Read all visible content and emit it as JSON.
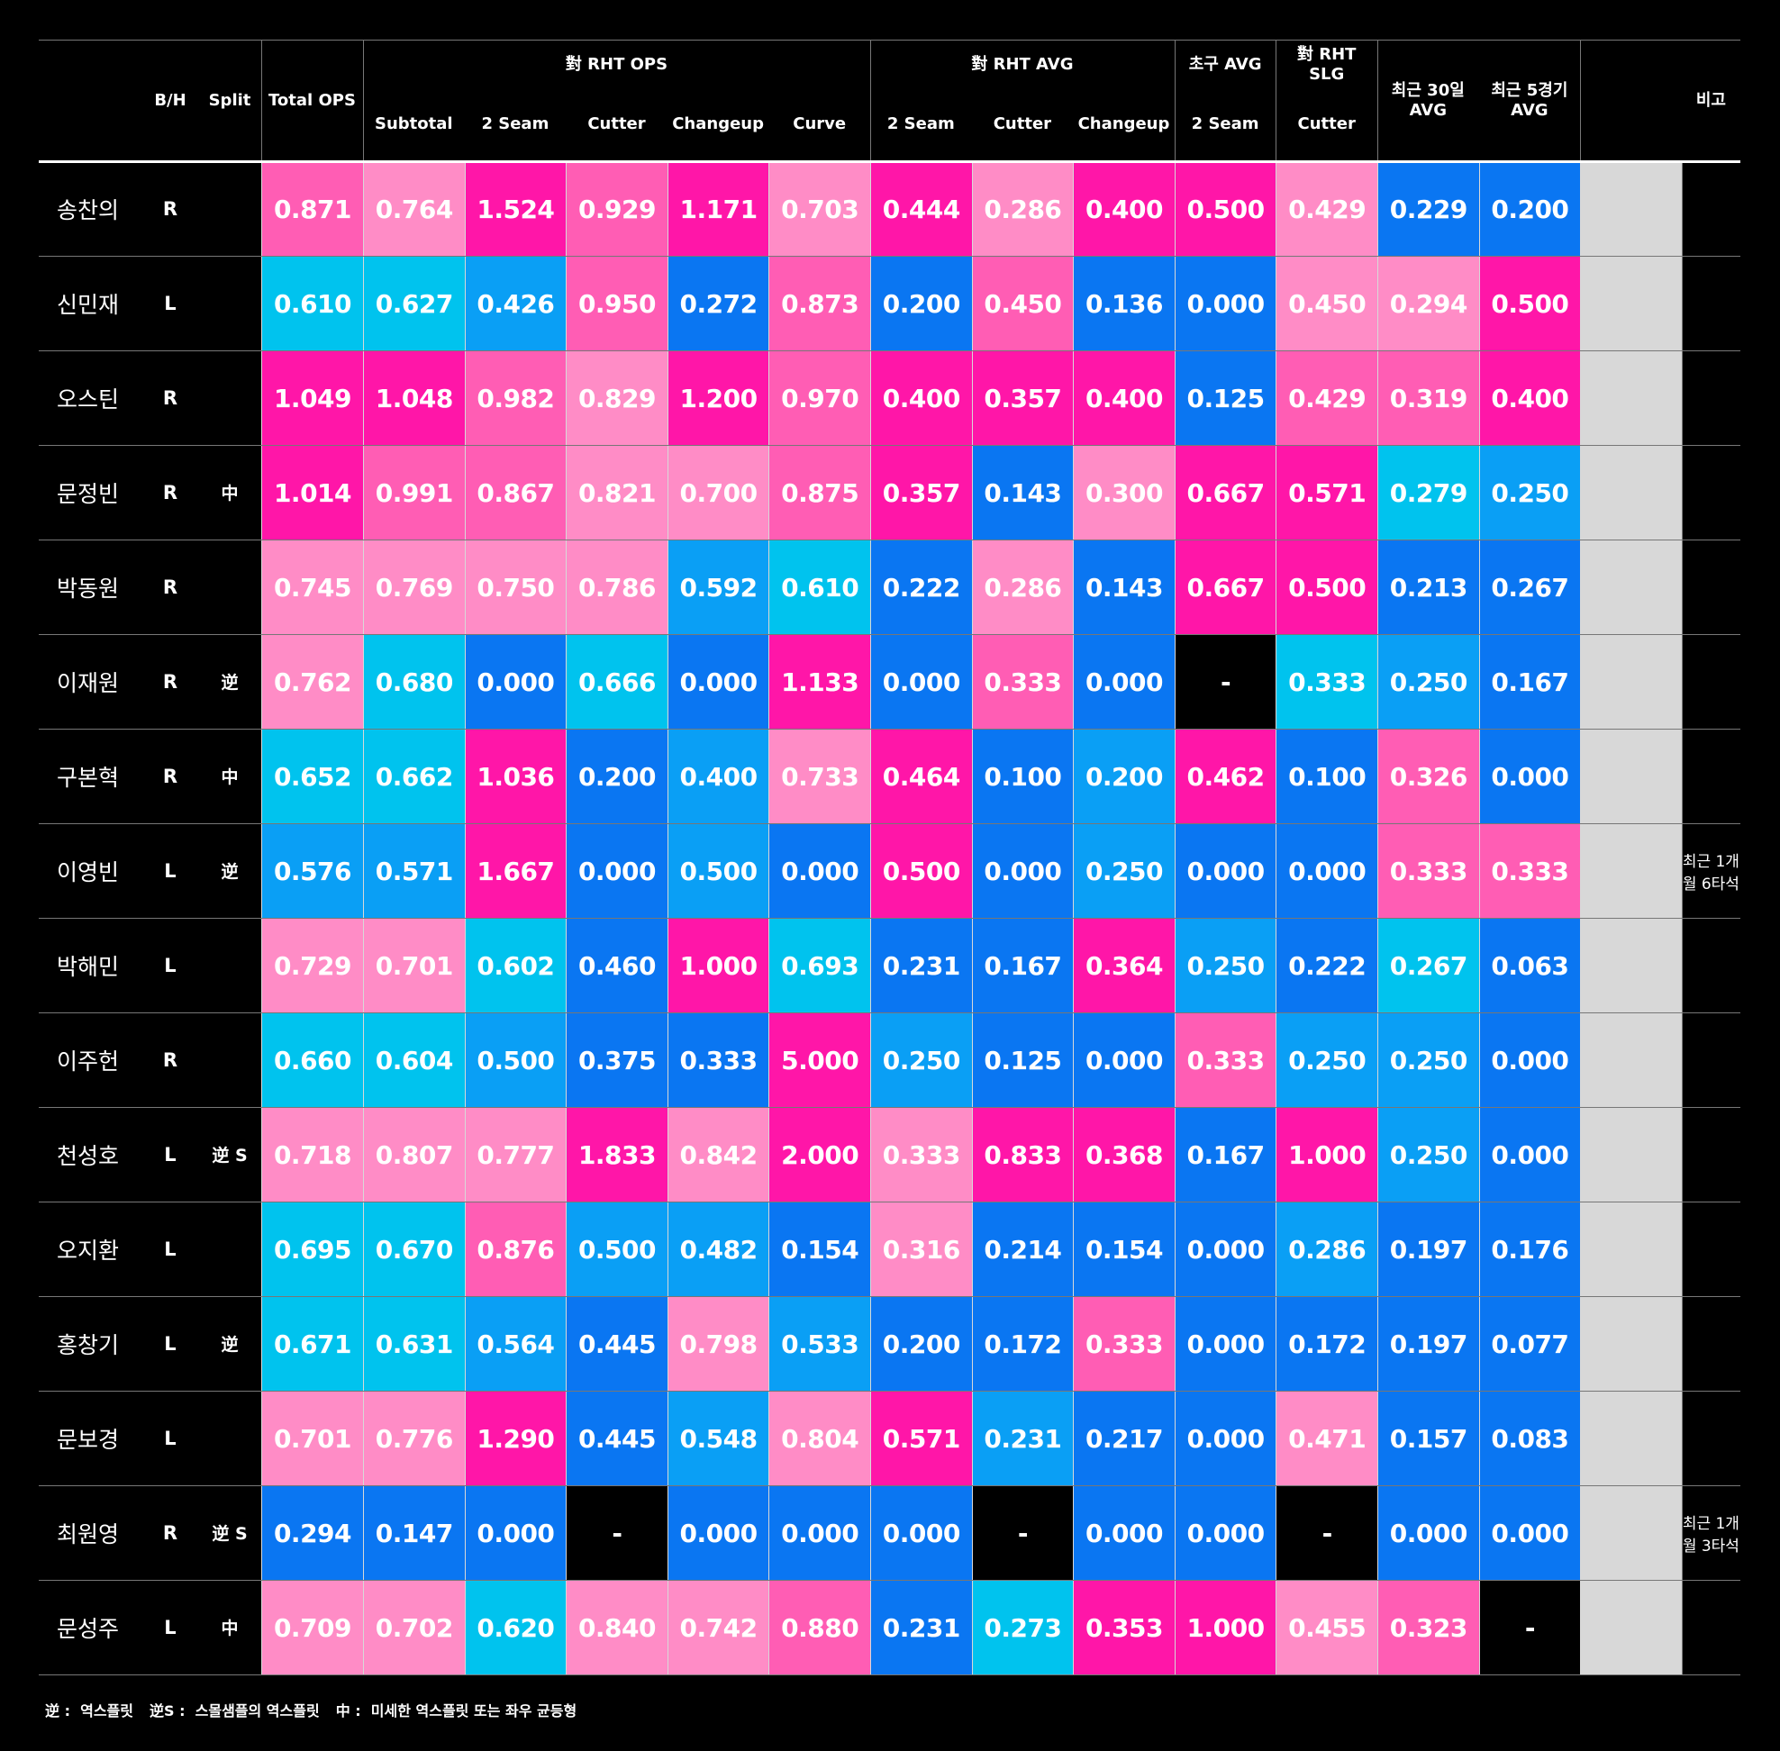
{
  "header": {
    "bh": "B/H",
    "split": "Split",
    "total": "Total OPS",
    "groups": [
      {
        "title": [
          "對 RHT OPS"
        ],
        "columns": [
          "Subtotal",
          "2 Seam",
          "Cutter",
          "Changeup",
          "Curve"
        ]
      },
      {
        "title": [
          "對 RHT AVG"
        ],
        "columns": [
          "2 Seam",
          "Cutter",
          "Changeup"
        ]
      },
      {
        "title": [
          "초구 AVG"
        ],
        "columns": [
          "2 Seam"
        ]
      },
      {
        "title": [
          "對 RHT",
          "SLG"
        ],
        "columns": [
          "Cutter"
        ]
      }
    ],
    "recent": [
      [
        "최근 30일",
        "AVG"
      ],
      [
        "최근 5경기",
        "AVG"
      ]
    ],
    "note": "비고"
  },
  "rows": [
    {
      "name": "송찬의",
      "bh": "R",
      "values": [
        "0.871",
        "0.764",
        "1.524",
        "0.929",
        "1.171",
        "0.703",
        "0.444",
        "0.286",
        "0.400",
        "0.500",
        "0.429",
        "0.229",
        "0.200"
      ],
      "colors": [
        "#ff5db4",
        "#ff8cc6",
        "#ff16a8",
        "#ff5db4",
        "#ff16a8",
        "#ff8cc6",
        "#ff16a8",
        "#ff8cc6",
        "#ff16a8",
        "#ff16a8",
        "#ff8cc6",
        "#0a76f2",
        "#0a76f2"
      ]
    },
    {
      "name": "신민재",
      "bh": "L",
      "values": [
        "0.610",
        "0.627",
        "0.426",
        "0.950",
        "0.272",
        "0.873",
        "0.200",
        "0.450",
        "0.136",
        "0.000",
        "0.450",
        "0.294",
        "0.500"
      ],
      "colors": [
        "#00c3ee",
        "#00c3ee",
        "#0a9ff5",
        "#ff5db4",
        "#0a76f2",
        "#ff5db4",
        "#0a76f2",
        "#ff5db4",
        "#0a76f2",
        "#0a76f2",
        "#ff8cc6",
        "#ff8cc6",
        "#ff16a8"
      ]
    },
    {
      "name": "오스틴",
      "bh": "R",
      "values": [
        "1.049",
        "1.048",
        "0.982",
        "0.829",
        "1.200",
        "0.970",
        "0.400",
        "0.357",
        "0.400",
        "0.125",
        "0.429",
        "0.319",
        "0.400"
      ],
      "colors": [
        "#ff16a8",
        "#ff16a8",
        "#ff5db4",
        "#ff8cc6",
        "#ff16a8",
        "#ff5db4",
        "#ff16a8",
        "#ff16a8",
        "#ff16a8",
        "#0a76f2",
        "#ff5db4",
        "#ff5db4",
        "#ff16a8"
      ]
    },
    {
      "name": "문정빈",
      "bh": "R",
      "split": "中",
      "values": [
        "1.014",
        "0.991",
        "0.867",
        "0.821",
        "0.700",
        "0.875",
        "0.357",
        "0.143",
        "0.300",
        "0.667",
        "0.571",
        "0.279",
        "0.250"
      ],
      "colors": [
        "#ff16a8",
        "#ff5db4",
        "#ff5db4",
        "#ff8cc6",
        "#ff8cc6",
        "#ff5db4",
        "#ff16a8",
        "#0a76f2",
        "#ff8cc6",
        "#ff16a8",
        "#ff16a8",
        "#00c3ee",
        "#0a9ff5"
      ]
    },
    {
      "name": "박동원",
      "bh": "R",
      "values": [
        "0.745",
        "0.769",
        "0.750",
        "0.786",
        "0.592",
        "0.610",
        "0.222",
        "0.286",
        "0.143",
        "0.667",
        "0.500",
        "0.213",
        "0.267"
      ],
      "colors": [
        "#ff8cc6",
        "#ff8cc6",
        "#ff8cc6",
        "#ff8cc6",
        "#0a9ff5",
        "#00c3ee",
        "#0a76f2",
        "#ff8cc6",
        "#0a76f2",
        "#ff16a8",
        "#ff16a8",
        "#0a76f2",
        "#0a76f2"
      ]
    },
    {
      "name": "이재원",
      "bh": "R",
      "split": "逆",
      "values": [
        "0.762",
        "0.680",
        "0.000",
        "0.666",
        "0.000",
        "1.133",
        "0.000",
        "0.333",
        "0.000",
        "-",
        "0.333",
        "0.250",
        "0.167"
      ],
      "colors": [
        "#ff8cc6",
        "#00c3ee",
        "#0a76f2",
        "#00c3ee",
        "#0a76f2",
        "#ff16a8",
        "#0a76f2",
        "#ff5db4",
        "#0a76f2",
        "#000000",
        "#00c3ee",
        "#0a9ff5",
        "#0a76f2"
      ]
    },
    {
      "name": "구본혁",
      "bh": "R",
      "split": "中",
      "values": [
        "0.652",
        "0.662",
        "1.036",
        "0.200",
        "0.400",
        "0.733",
        "0.464",
        "0.100",
        "0.200",
        "0.462",
        "0.100",
        "0.326",
        "0.000"
      ],
      "colors": [
        "#00c3ee",
        "#00c3ee",
        "#ff16a8",
        "#0a76f2",
        "#0a9ff5",
        "#ff8cc6",
        "#ff16a8",
        "#0a76f2",
        "#0a9ff5",
        "#ff16a8",
        "#0a76f2",
        "#ff5db4",
        "#0a76f2"
      ]
    },
    {
      "name": "이영빈",
      "bh": "L",
      "split": "逆",
      "note": "최근 1개월 6타석",
      "values": [
        "0.576",
        "0.571",
        "1.667",
        "0.000",
        "0.500",
        "0.000",
        "0.500",
        "0.000",
        "0.250",
        "0.000",
        "0.000",
        "0.333",
        "0.333"
      ],
      "colors": [
        "#0a9ff5",
        "#0a9ff5",
        "#ff16a8",
        "#0a76f2",
        "#0a9ff5",
        "#0a76f2",
        "#ff16a8",
        "#0a76f2",
        "#0a9ff5",
        "#0a76f2",
        "#0a76f2",
        "#ff5db4",
        "#ff5db4"
      ]
    },
    {
      "name": "박해민",
      "bh": "L",
      "values": [
        "0.729",
        "0.701",
        "0.602",
        "0.460",
        "1.000",
        "0.693",
        "0.231",
        "0.167",
        "0.364",
        "0.250",
        "0.222",
        "0.267",
        "0.063"
      ],
      "colors": [
        "#ff8cc6",
        "#ff8cc6",
        "#00c3ee",
        "#0a76f2",
        "#ff16a8",
        "#00c3ee",
        "#0a76f2",
        "#0a76f2",
        "#ff16a8",
        "#0a9ff5",
        "#0a76f2",
        "#00c3ee",
        "#0a76f2"
      ]
    },
    {
      "name": "이주헌",
      "bh": "R",
      "values": [
        "0.660",
        "0.604",
        "0.500",
        "0.375",
        "0.333",
        "5.000",
        "0.250",
        "0.125",
        "0.000",
        "0.333",
        "0.250",
        "0.250",
        "0.000"
      ],
      "colors": [
        "#00c3ee",
        "#00c3ee",
        "#0a9ff5",
        "#0a76f2",
        "#0a76f2",
        "#ff16a8",
        "#0a9ff5",
        "#0a76f2",
        "#0a76f2",
        "#ff5db4",
        "#0a9ff5",
        "#0a9ff5",
        "#0a76f2"
      ]
    },
    {
      "name": "천성호",
      "bh": "L",
      "split": "逆 S",
      "values": [
        "0.718",
        "0.807",
        "0.777",
        "1.833",
        "0.842",
        "2.000",
        "0.333",
        "0.833",
        "0.368",
        "0.167",
        "1.000",
        "0.250",
        "0.000"
      ],
      "colors": [
        "#ff8cc6",
        "#ff8cc6",
        "#ff8cc6",
        "#ff16a8",
        "#ff8cc6",
        "#ff16a8",
        "#ff8cc6",
        "#ff16a8",
        "#ff16a8",
        "#0a76f2",
        "#ff16a8",
        "#0a9ff5",
        "#0a76f2"
      ]
    },
    {
      "name": "오지환",
      "bh": "L",
      "values": [
        "0.695",
        "0.670",
        "0.876",
        "0.500",
        "0.482",
        "0.154",
        "0.316",
        "0.214",
        "0.154",
        "0.000",
        "0.286",
        "0.197",
        "0.176"
      ],
      "colors": [
        "#00c3ee",
        "#00c3ee",
        "#ff5db4",
        "#0a9ff5",
        "#0a9ff5",
        "#0a76f2",
        "#ff8cc6",
        "#0a76f2",
        "#0a76f2",
        "#0a76f2",
        "#0a9ff5",
        "#0a76f2",
        "#0a76f2"
      ]
    },
    {
      "name": "홍창기",
      "bh": "L",
      "split": "逆",
      "values": [
        "0.671",
        "0.631",
        "0.564",
        "0.445",
        "0.798",
        "0.533",
        "0.200",
        "0.172",
        "0.333",
        "0.000",
        "0.172",
        "0.197",
        "0.077"
      ],
      "colors": [
        "#00c3ee",
        "#00c3ee",
        "#0a9ff5",
        "#0a76f2",
        "#ff8cc6",
        "#0a9ff5",
        "#0a76f2",
        "#0a76f2",
        "#ff5db4",
        "#0a76f2",
        "#0a76f2",
        "#0a76f2",
        "#0a76f2"
      ]
    },
    {
      "name": "문보경",
      "bh": "L",
      "values": [
        "0.701",
        "0.776",
        "1.290",
        "0.445",
        "0.548",
        "0.804",
        "0.571",
        "0.231",
        "0.217",
        "0.000",
        "0.471",
        "0.157",
        "0.083"
      ],
      "colors": [
        "#ff8cc6",
        "#ff8cc6",
        "#ff16a8",
        "#0a76f2",
        "#0a9ff5",
        "#ff8cc6",
        "#ff16a8",
        "#0a9ff5",
        "#0a76f2",
        "#0a76f2",
        "#ff8cc6",
        "#0a76f2",
        "#0a76f2"
      ]
    },
    {
      "name": "최원영",
      "bh": "R",
      "split": "逆 S",
      "note": "최근 1개월 3타석",
      "values": [
        "0.294",
        "0.147",
        "0.000",
        "-",
        "0.000",
        "0.000",
        "0.000",
        "-",
        "0.000",
        "0.000",
        "-",
        "0.000",
        "0.000"
      ],
      "colors": [
        "#0a76f2",
        "#0a76f2",
        "#0a76f2",
        "#000000",
        "#0a76f2",
        "#0a76f2",
        "#0a76f2",
        "#000000",
        "#0a76f2",
        "#0a76f2",
        "#000000",
        "#0a76f2",
        "#0a76f2"
      ]
    },
    {
      "name": "문성주",
      "bh": "L",
      "split": "中",
      "values": [
        "0.709",
        "0.702",
        "0.620",
        "0.840",
        "0.742",
        "0.880",
        "0.231",
        "0.273",
        "0.353",
        "1.000",
        "0.455",
        "0.323",
        "-"
      ],
      "colors": [
        "#ff8cc6",
        "#ff8cc6",
        "#00c3ee",
        "#ff8cc6",
        "#ff8cc6",
        "#ff5db4",
        "#0a76f2",
        "#00c3ee",
        "#ff16a8",
        "#ff16a8",
        "#ff8cc6",
        "#ff5db4",
        "#000000"
      ]
    }
  ],
  "legend": [
    "逆 :  역스플릿",
    "逆S :  스몰샘플의 역스플릿",
    "中 :  미세한 역스플릿 또는 좌우 균등형"
  ]
}
